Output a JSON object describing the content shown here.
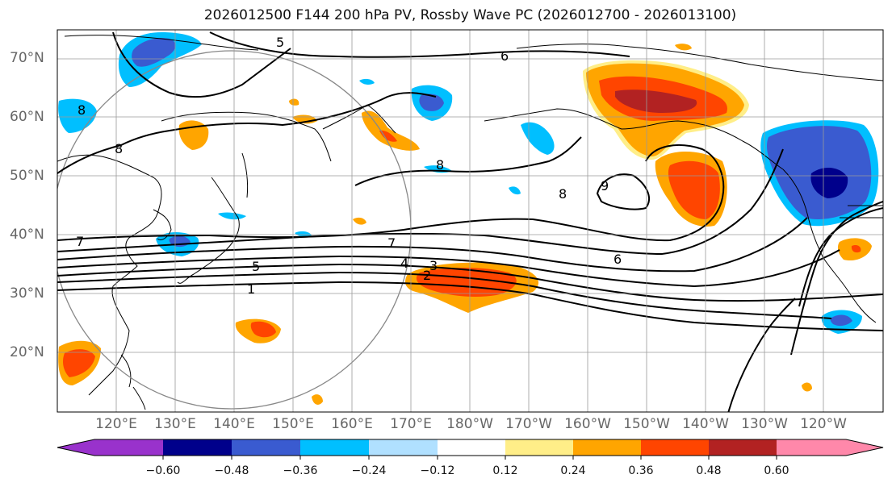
{
  "title": "2026012500 F144 200 hPa PV, Rossby Wave PC (2026012700 - 2026013100)",
  "lat_labels": [
    "70°N",
    "60°N",
    "50°N",
    "40°N",
    "30°N",
    "20°N"
  ],
  "lon_labels": [
    "120°E",
    "130°E",
    "140°E",
    "150°E",
    "160°E",
    "170°E",
    "180°W",
    "170°W",
    "160°W",
    "150°W",
    "140°W",
    "130°W",
    "120°W"
  ],
  "colorbar": {
    "colors": [
      "#9932cc",
      "#00008b",
      "#3a5bd0",
      "#00bfff",
      "#b0e0ff",
      "#ffffff",
      "#ffee88",
      "#ffa500",
      "#ff4500",
      "#b22222",
      "#ff88aa"
    ],
    "tick_labels": [
      "−0.60",
      "−0.48",
      "−0.36",
      "−0.24",
      "−0.12",
      "0.12",
      "0.24",
      "0.36",
      "0.48",
      "0.60"
    ]
  },
  "contour_labels": [
    "5",
    "6",
    "8",
    "8",
    "8",
    "8",
    "9",
    "7",
    "7",
    "6",
    "5",
    "4",
    "3",
    "2",
    "1"
  ]
}
